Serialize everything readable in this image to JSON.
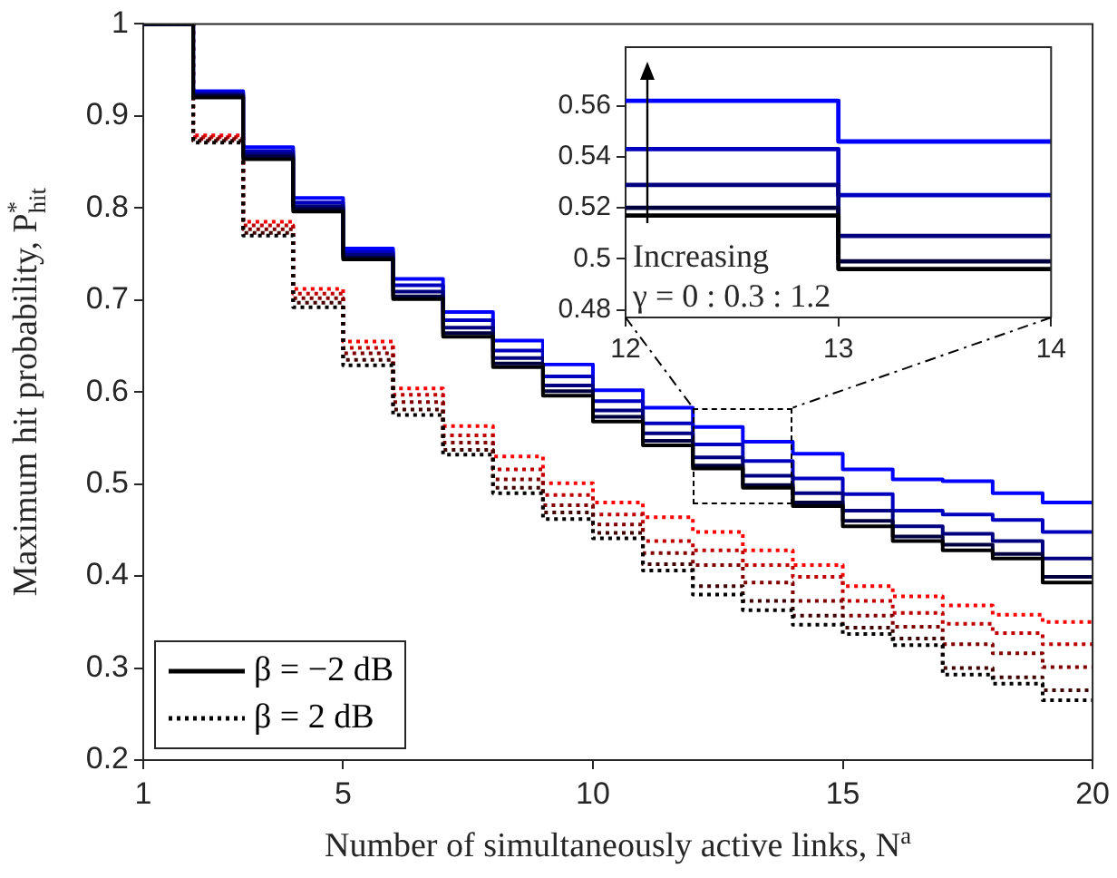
{
  "chart_data": [
    {
      "type": "step",
      "xlabel": "Number of simultaneously active links, N$^{a}$",
      "ylabel": "Maximum hit probability, P$^{*}$$_{hit}$",
      "x": [
        1,
        2,
        3,
        4,
        5,
        6,
        7,
        8,
        9,
        10,
        11,
        12,
        13,
        14,
        15,
        16,
        17,
        18,
        19,
        20
      ],
      "xlim": [
        1,
        20
      ],
      "xticks": [
        1,
        5,
        10,
        15,
        20
      ],
      "ylim": [
        0.2,
        1
      ],
      "yticks": [
        0.2,
        0.3,
        0.4,
        0.5,
        0.6,
        0.7,
        0.8,
        0.9,
        1
      ],
      "grid": false,
      "legend": "bottom left",
      "series": [
        {
          "name": "β = −2 dB",
          "color": "#000000",
          "line_style": "solid",
          "values": [
            1,
            0.92,
            0.853,
            0.796,
            0.744,
            0.701,
            0.66,
            0.627,
            0.596,
            0.568,
            0.542,
            0.517,
            0.496,
            0.476,
            0.454,
            0.438,
            0.428,
            0.419,
            0.393,
            0.393
          ]
        },
        {
          "color": "#000040",
          "line_style": "solid",
          "values": [
            1,
            0.922,
            0.856,
            0.799,
            0.746,
            0.704,
            0.664,
            0.631,
            0.601,
            0.573,
            0.547,
            0.52,
            0.499,
            0.48,
            0.46,
            0.443,
            0.434,
            0.424,
            0.399,
            0.399
          ]
        },
        {
          "color": "#000080",
          "line_style": "solid",
          "values": [
            1,
            0.923,
            0.859,
            0.802,
            0.749,
            0.709,
            0.67,
            0.637,
            0.607,
            0.58,
            0.555,
            0.529,
            0.509,
            0.49,
            0.471,
            0.454,
            0.446,
            0.438,
            0.419,
            0.419
          ]
        },
        {
          "color": "#0000bf",
          "line_style": "solid",
          "values": [
            1,
            0.925,
            0.862,
            0.806,
            0.752,
            0.716,
            0.678,
            0.645,
            0.617,
            0.59,
            0.566,
            0.543,
            0.525,
            0.506,
            0.489,
            0.471,
            0.467,
            0.461,
            0.448,
            0.448
          ]
        },
        {
          "color": "#0000ff",
          "line_style": "solid",
          "values": [
            1,
            0.927,
            0.866,
            0.811,
            0.756,
            0.723,
            0.687,
            0.656,
            0.63,
            0.602,
            0.583,
            0.562,
            0.546,
            0.533,
            0.516,
            0.505,
            0.503,
            0.49,
            0.48,
            0.48
          ]
        },
        {
          "name": "β = 2 dB",
          "color": "#000000",
          "line_style": "dotted",
          "values": [
            1,
            0.871,
            0.77,
            0.692,
            0.629,
            0.575,
            0.532,
            0.49,
            0.462,
            0.441,
            0.406,
            0.38,
            0.363,
            0.347,
            0.337,
            0.325,
            0.293,
            0.283,
            0.265,
            0.265
          ]
        },
        {
          "color": "#400000",
          "line_style": "dotted",
          "values": [
            1,
            0.873,
            0.773,
            0.697,
            0.635,
            0.581,
            0.537,
            0.496,
            0.469,
            0.447,
            0.413,
            0.389,
            0.373,
            0.357,
            0.344,
            0.332,
            0.3,
            0.29,
            0.276,
            0.276
          ]
        },
        {
          "color": "#800000",
          "line_style": "dotted",
          "values": [
            1,
            0.875,
            0.777,
            0.702,
            0.642,
            0.589,
            0.545,
            0.505,
            0.477,
            0.456,
            0.425,
            0.412,
            0.393,
            0.373,
            0.357,
            0.345,
            0.326,
            0.316,
            0.301,
            0.301
          ]
        },
        {
          "color": "#bf0000",
          "line_style": "dotted",
          "values": [
            1,
            0.877,
            0.781,
            0.707,
            0.648,
            0.597,
            0.553,
            0.516,
            0.488,
            0.467,
            0.438,
            0.428,
            0.412,
            0.399,
            0.373,
            0.36,
            0.348,
            0.338,
            0.326,
            0.326
          ]
        },
        {
          "color": "#ff0000",
          "line_style": "dotted",
          "values": [
            1,
            0.879,
            0.785,
            0.712,
            0.655,
            0.604,
            0.563,
            0.53,
            0.501,
            0.48,
            0.464,
            0.448,
            0.428,
            0.412,
            0.389,
            0.378,
            0.368,
            0.358,
            0.35,
            0.35
          ]
        }
      ]
    },
    {
      "type": "step",
      "x": [
        12,
        13,
        14
      ],
      "xlim": [
        12,
        14
      ],
      "xticks": [
        12,
        13,
        14
      ],
      "ylim": [
        0.477,
        0.583
      ],
      "yticks": [
        0.48,
        0.5,
        0.52,
        0.54,
        0.56
      ],
      "grid": false,
      "annotations": [
        "Increasing",
        "γ = 0 : 0.3 : 1.2"
      ],
      "series": [
        {
          "color": "#000000",
          "line_style": "solid",
          "values": [
            0.517,
            0.496,
            0.496
          ]
        },
        {
          "color": "#000040",
          "line_style": "solid",
          "values": [
            0.52,
            0.499,
            0.499
          ]
        },
        {
          "color": "#000080",
          "line_style": "solid",
          "values": [
            0.529,
            0.509,
            0.509
          ]
        },
        {
          "color": "#0000bf",
          "line_style": "solid",
          "values": [
            0.543,
            0.525,
            0.525
          ]
        },
        {
          "color": "#0000ff",
          "line_style": "solid",
          "values": [
            0.562,
            0.546,
            0.546
          ]
        }
      ]
    }
  ]
}
